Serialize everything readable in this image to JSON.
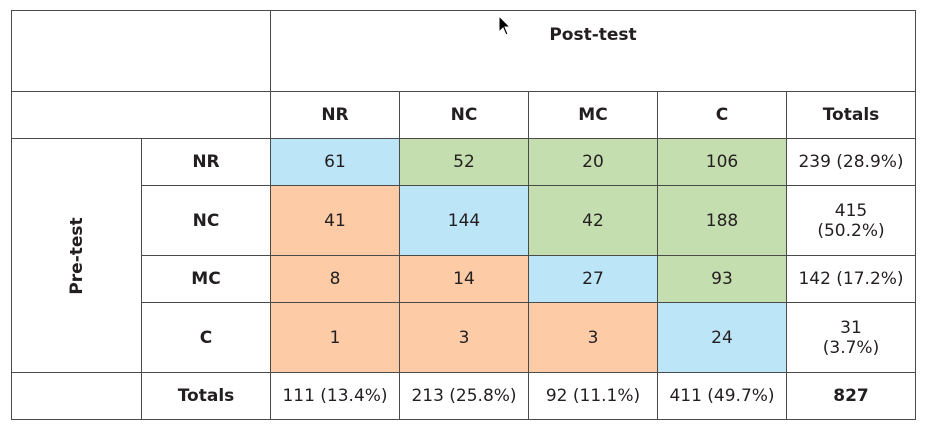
{
  "header": {
    "post_test": "Post-test",
    "pre_test": "Pre-test",
    "columns": [
      "NR",
      "NC",
      "MC",
      "C",
      "Totals"
    ]
  },
  "rows": [
    {
      "label": "NR",
      "cells": [
        "61",
        "52",
        "20",
        "106"
      ],
      "total": "239 (28.9%)"
    },
    {
      "label": "NC",
      "cells": [
        "41",
        "144",
        "42",
        "188"
      ],
      "total_line1": "415",
      "total_line2": "(50.2%)"
    },
    {
      "label": "MC",
      "cells": [
        "8",
        "14",
        "27",
        "93"
      ],
      "total": "142 (17.2%)"
    },
    {
      "label": "C",
      "cells": [
        "1",
        "3",
        "3",
        "24"
      ],
      "total_line1": "31",
      "total_line2": "(3.7%)"
    }
  ],
  "totals_row": {
    "label": "Totals",
    "cells": [
      "111 (13.4%)",
      "213 (25.8%)",
      "92 (11.1%)",
      "411 (49.7%)"
    ],
    "grand_total": "827"
  },
  "colors": {
    "diagonal": "#bde5f8",
    "improved": "#c5deb0",
    "declined": "#fdcba6",
    "border": "#4a4a4a"
  },
  "icons": {
    "cursor": "mouse-pointer-icon"
  }
}
